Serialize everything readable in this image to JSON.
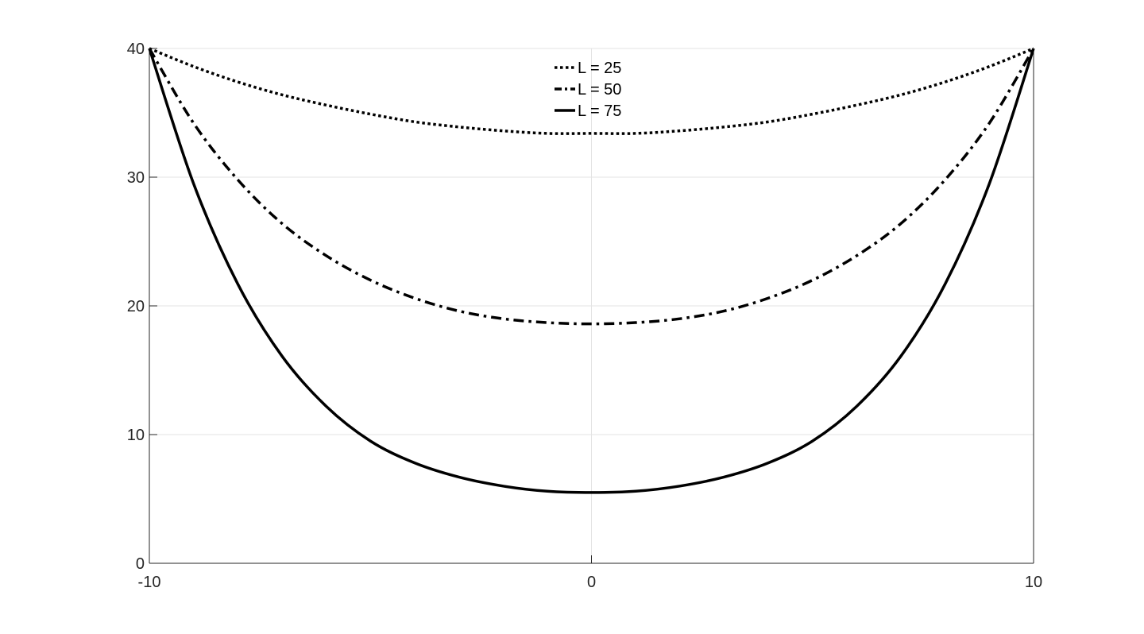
{
  "chart_data": {
    "type": "line",
    "title": "",
    "xlabel": "",
    "ylabel": "",
    "xlim": [
      -10,
      10
    ],
    "ylim": [
      0,
      40
    ],
    "x_ticks": [
      -10,
      0,
      10
    ],
    "y_ticks": [
      0,
      10,
      20,
      30,
      40
    ],
    "x_tick_labels": [
      "-10",
      "0",
      "10"
    ],
    "y_tick_labels": [
      "0",
      "10",
      "20",
      "30",
      "40"
    ],
    "grid": true,
    "legend_position": "top-center",
    "line_color": "#000000",
    "x": [
      -10,
      -9,
      -8,
      -7,
      -6,
      -5,
      -4,
      -3,
      -2,
      -1,
      0,
      1,
      2,
      3,
      4,
      5,
      6,
      7,
      8,
      9,
      10
    ],
    "series": [
      {
        "name": "L = 25",
        "style": "dotted",
        "values": [
          40.0,
          38.6,
          37.4,
          36.4,
          35.6,
          34.9,
          34.3,
          33.9,
          33.6,
          33.4,
          33.4,
          33.4,
          33.6,
          33.9,
          34.3,
          34.9,
          35.6,
          36.4,
          37.4,
          38.6,
          40.0
        ]
      },
      {
        "name": "L = 50",
        "style": "dashdot",
        "values": [
          40.0,
          34.2,
          29.8,
          26.4,
          23.9,
          22.0,
          20.6,
          19.6,
          19.0,
          18.7,
          18.6,
          18.7,
          19.0,
          19.6,
          20.6,
          22.0,
          23.9,
          26.4,
          29.8,
          34.2,
          40.0
        ]
      },
      {
        "name": "L = 75",
        "style": "solid",
        "values": [
          40.0,
          29.5,
          21.7,
          16.1,
          12.2,
          9.5,
          7.8,
          6.7,
          6.0,
          5.6,
          5.5,
          5.6,
          6.0,
          6.7,
          7.8,
          9.5,
          12.2,
          16.1,
          21.7,
          29.5,
          40.0
        ]
      }
    ]
  }
}
